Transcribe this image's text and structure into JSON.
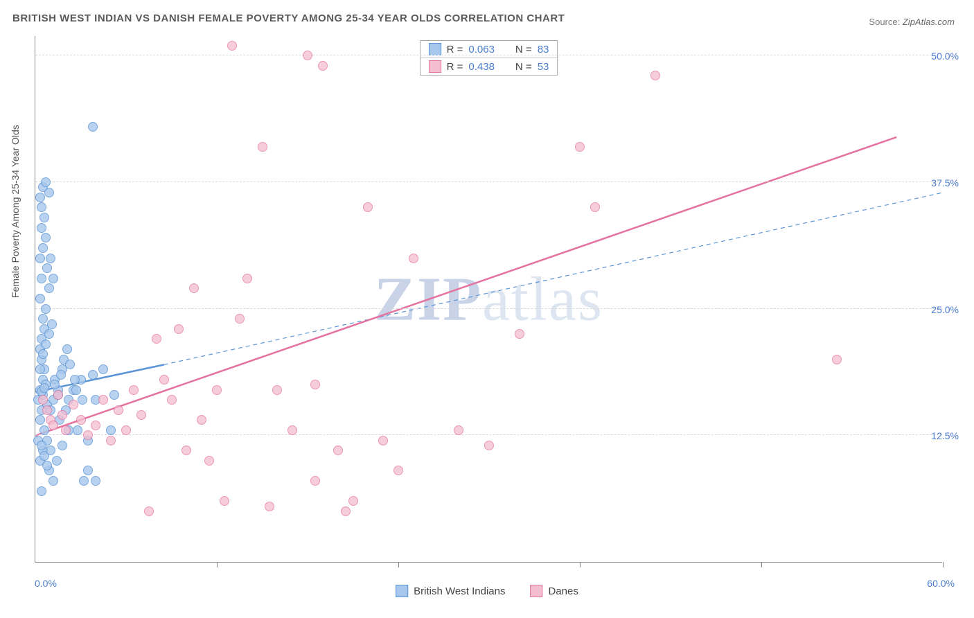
{
  "title": "BRITISH WEST INDIAN VS DANISH FEMALE POVERTY AMONG 25-34 YEAR OLDS CORRELATION CHART",
  "source_label": "Source:",
  "source_name": "ZipAtlas.com",
  "ylabel": "Female Poverty Among 25-34 Year Olds",
  "watermark": "ZIPatlas",
  "chart": {
    "type": "scatter",
    "background_color": "#ffffff",
    "grid_color": "#d8d8d8",
    "axis_color": "#888888",
    "xlim": [
      0,
      60
    ],
    "ylim": [
      0,
      52
    ],
    "x_ticks": [
      0,
      12,
      24,
      36,
      48,
      60
    ],
    "x_tick_labels": {
      "0": "0.0%",
      "60": "60.0%"
    },
    "y_gridlines": [
      12.5,
      25.0,
      37.5,
      50.0
    ],
    "y_tick_labels": [
      "12.5%",
      "25.0%",
      "37.5%",
      "50.0%"
    ],
    "marker_radius": 7,
    "marker_stroke_width": 1.5,
    "series": [
      {
        "name": "British West Indians",
        "fill": "#a7c8ec",
        "fill_opacity": 0.55,
        "stroke": "#5a94d6",
        "R": "0.063",
        "N": "83",
        "trend": {
          "solid": {
            "x1": 0,
            "y1": 16.8,
            "x2": 8.5,
            "y2": 19.5,
            "width": 2.5
          },
          "dashed": {
            "x1": 8.5,
            "y1": 19.5,
            "x2": 60,
            "y2": 36.5,
            "width": 1.2
          }
        },
        "points": [
          [
            0.2,
            16
          ],
          [
            0.3,
            17
          ],
          [
            0.4,
            15
          ],
          [
            0.5,
            18
          ],
          [
            0.3,
            14
          ],
          [
            0.6,
            19
          ],
          [
            0.4,
            20
          ],
          [
            0.5,
            16.5
          ],
          [
            0.7,
            17.5
          ],
          [
            0.8,
            15.5
          ],
          [
            0.3,
            21
          ],
          [
            0.4,
            22
          ],
          [
            0.6,
            23
          ],
          [
            0.5,
            24
          ],
          [
            0.7,
            25
          ],
          [
            0.3,
            26
          ],
          [
            0.9,
            27
          ],
          [
            0.4,
            28
          ],
          [
            0.6,
            13
          ],
          [
            0.8,
            12
          ],
          [
            0.5,
            11
          ],
          [
            0.3,
            10
          ],
          [
            0.9,
            9
          ],
          [
            1.2,
            8
          ],
          [
            0.4,
            7
          ],
          [
            1.0,
            15
          ],
          [
            1.2,
            16
          ],
          [
            1.5,
            17
          ],
          [
            1.3,
            18
          ],
          [
            1.8,
            19
          ],
          [
            1.6,
            14
          ],
          [
            2.0,
            15
          ],
          [
            2.2,
            16
          ],
          [
            2.5,
            17
          ],
          [
            2.8,
            13
          ],
          [
            3.0,
            18
          ],
          [
            3.2,
            8
          ],
          [
            3.5,
            9
          ],
          [
            3.8,
            18.5
          ],
          [
            4.0,
            16
          ],
          [
            4.5,
            19
          ],
          [
            5.0,
            13
          ],
          [
            5.2,
            16.5
          ],
          [
            0.3,
            30
          ],
          [
            0.5,
            31
          ],
          [
            0.7,
            32
          ],
          [
            0.4,
            33
          ],
          [
            0.6,
            34
          ],
          [
            0.8,
            29
          ],
          [
            1.0,
            30
          ],
          [
            1.2,
            28
          ],
          [
            0.3,
            36
          ],
          [
            0.5,
            37
          ],
          [
            0.7,
            37.5
          ],
          [
            0.4,
            35
          ],
          [
            0.9,
            36.5
          ],
          [
            3.8,
            43
          ],
          [
            3.5,
            12
          ],
          [
            4.0,
            8
          ],
          [
            0.2,
            12
          ],
          [
            0.4,
            11.5
          ],
          [
            0.6,
            10.5
          ],
          [
            0.8,
            9.5
          ],
          [
            1.0,
            11
          ],
          [
            1.4,
            10
          ],
          [
            1.8,
            11.5
          ],
          [
            2.2,
            13
          ],
          [
            2.6,
            18
          ],
          [
            0.3,
            19
          ],
          [
            0.5,
            20.5
          ],
          [
            0.7,
            21.5
          ],
          [
            0.9,
            22.5
          ],
          [
            1.1,
            23.5
          ],
          [
            1.3,
            17.5
          ],
          [
            1.5,
            16.5
          ],
          [
            1.7,
            18.5
          ],
          [
            1.9,
            20
          ],
          [
            2.1,
            21
          ],
          [
            2.3,
            19.5
          ],
          [
            2.7,
            17
          ],
          [
            3.1,
            16
          ],
          [
            0.4,
            16.8
          ],
          [
            0.6,
            17.2
          ]
        ]
      },
      {
        "name": "Danes",
        "fill": "#f4bdd0",
        "fill_opacity": 0.5,
        "stroke": "#e573a0",
        "R": "0.438",
        "N": "53",
        "trend": {
          "solid": {
            "x1": 0,
            "y1": 12.5,
            "x2": 57,
            "y2": 42,
            "width": 2.5
          }
        },
        "points": [
          [
            0.5,
            16
          ],
          [
            0.8,
            15
          ],
          [
            1.0,
            14
          ],
          [
            1.2,
            13.5
          ],
          [
            1.5,
            16.5
          ],
          [
            1.8,
            14.5
          ],
          [
            2.0,
            13
          ],
          [
            2.5,
            15.5
          ],
          [
            3.0,
            14
          ],
          [
            3.5,
            12.5
          ],
          [
            4.0,
            13.5
          ],
          [
            4.5,
            16
          ],
          [
            5.0,
            12
          ],
          [
            5.5,
            15
          ],
          [
            6.0,
            13
          ],
          [
            6.5,
            17
          ],
          [
            7.0,
            14.5
          ],
          [
            8.0,
            22
          ],
          [
            8.5,
            18
          ],
          [
            9.0,
            16
          ],
          [
            9.5,
            23
          ],
          [
            10,
            11
          ],
          [
            10.5,
            27
          ],
          [
            11,
            14
          ],
          [
            12,
            17
          ],
          [
            13,
            51
          ],
          [
            13.5,
            24
          ],
          [
            14,
            28
          ],
          [
            15,
            41
          ],
          [
            16,
            17
          ],
          [
            17,
            13
          ],
          [
            18,
            50
          ],
          [
            18.5,
            17.5
          ],
          [
            19,
            49
          ],
          [
            20,
            11
          ],
          [
            20.5,
            5
          ],
          [
            21,
            6
          ],
          [
            22,
            35
          ],
          [
            23,
            12
          ],
          [
            24,
            9
          ],
          [
            25,
            30
          ],
          [
            28,
            13
          ],
          [
            30,
            11.5
          ],
          [
            32,
            22.5
          ],
          [
            36,
            41
          ],
          [
            37,
            35
          ],
          [
            41,
            48
          ],
          [
            53,
            20
          ],
          [
            7.5,
            5
          ],
          [
            12.5,
            6
          ],
          [
            15.5,
            5.5
          ],
          [
            18.5,
            8
          ],
          [
            11.5,
            10
          ]
        ]
      }
    ]
  }
}
